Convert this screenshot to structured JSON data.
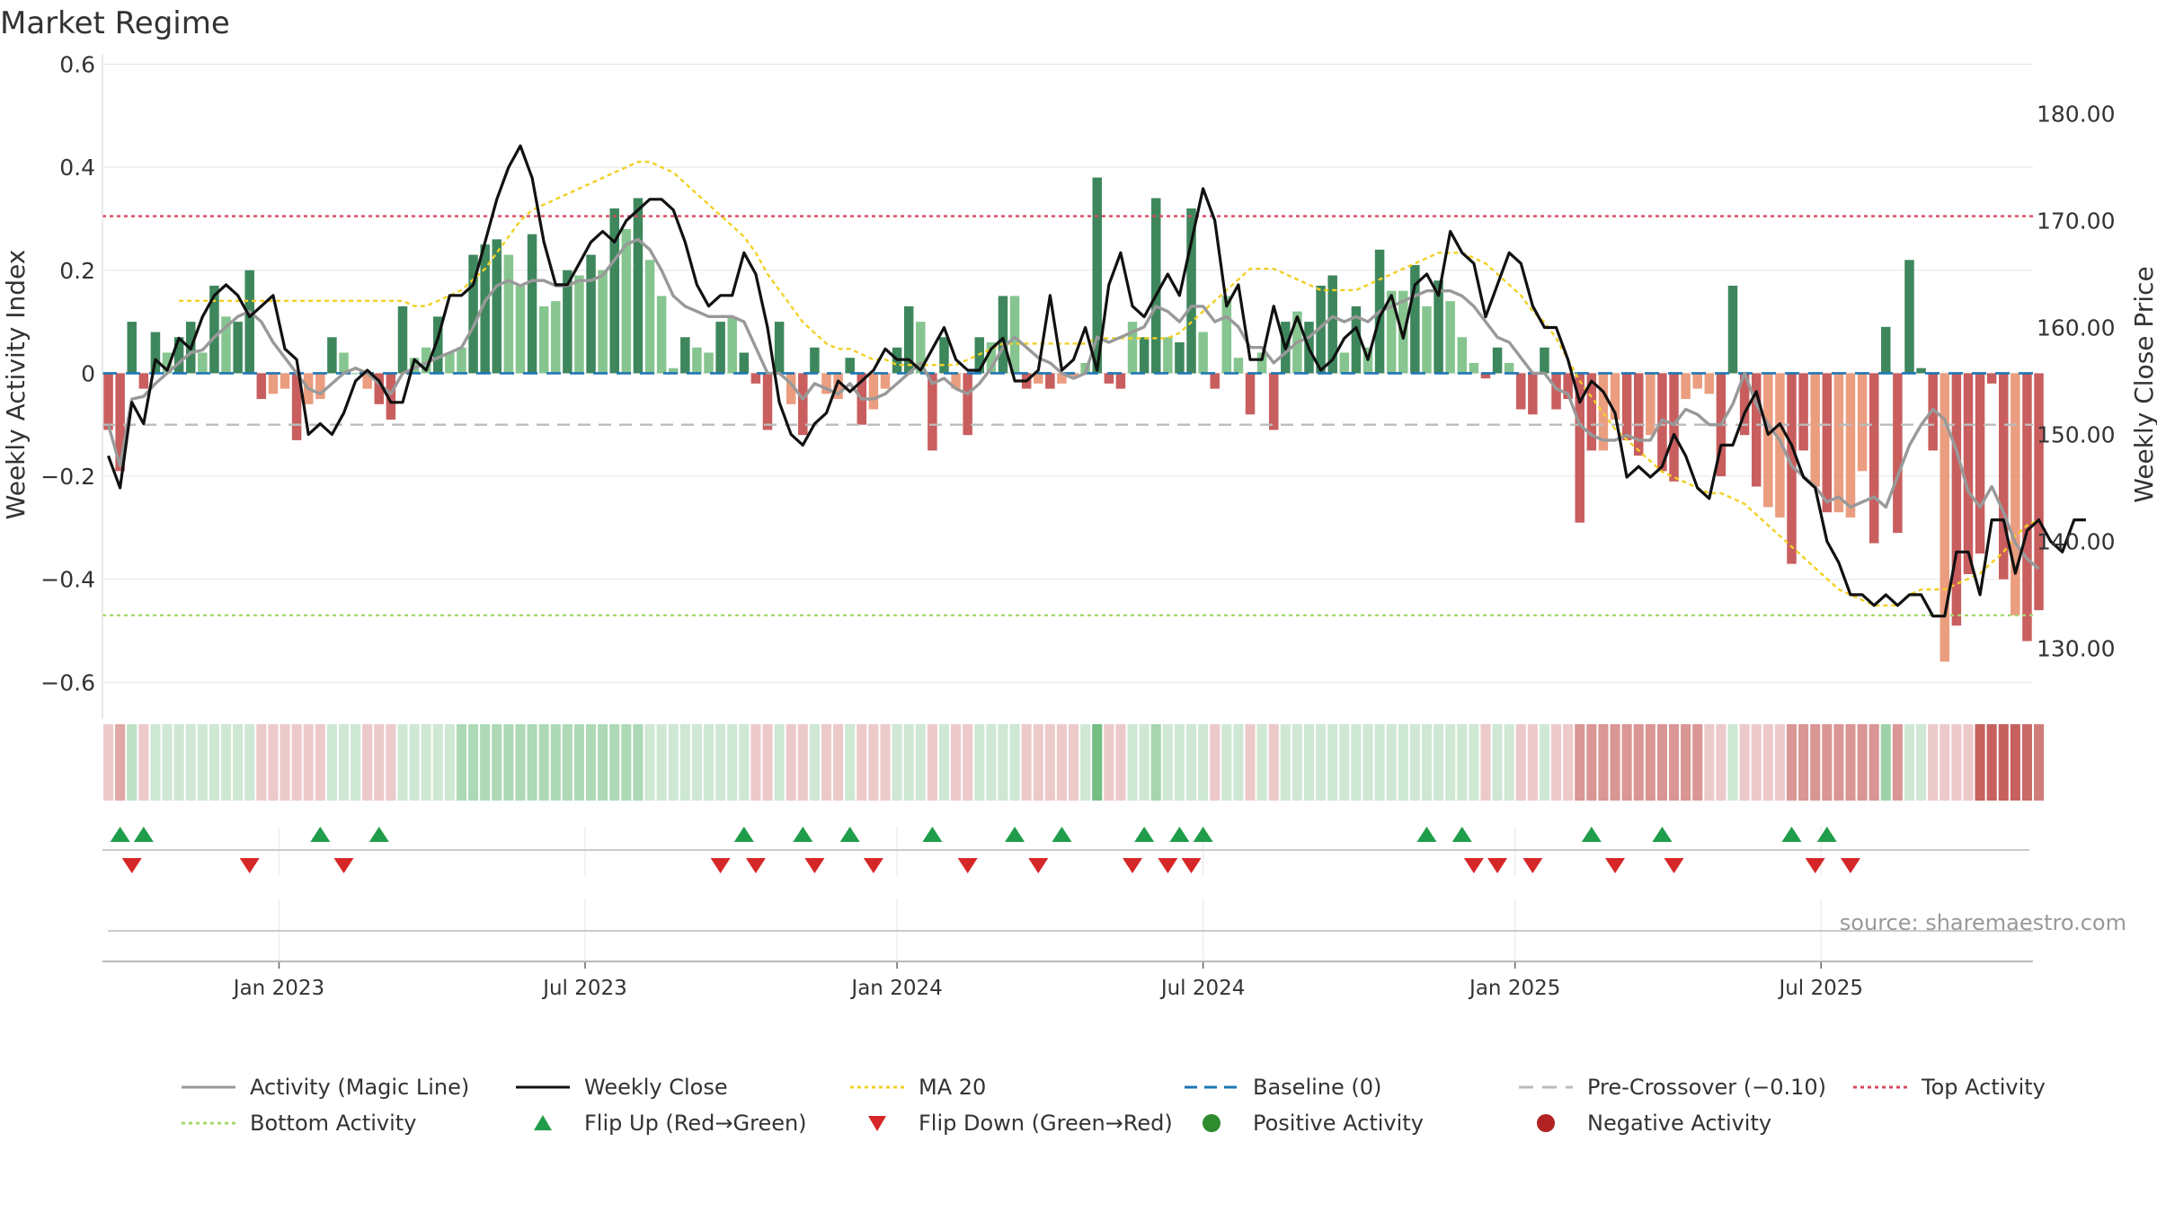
{
  "chart_data": {
    "type": "bar+line",
    "title": "Market Regime",
    "ylabel_left": "Weekly Activity Index",
    "ylabel_right": "Weekly Close Price",
    "source": "source: sharemaestro.com",
    "left_axis": {
      "ylim": [
        -0.65,
        0.62
      ],
      "ticks": [
        0.6,
        0.4,
        0.2,
        0,
        -0.2,
        -0.4,
        -0.6
      ],
      "tick_labels": [
        "0.6",
        "0.4",
        "0.2",
        "0",
        "−0.2",
        "−0.4",
        "−0.6"
      ]
    },
    "right_axis": {
      "ylim": [
        124.4,
        185.6
      ],
      "ticks": [
        180,
        170,
        160,
        150,
        140,
        130
      ],
      "tick_labels": [
        "180.00",
        "170.00",
        "160.00",
        "150.00",
        "140.00",
        "130.00"
      ]
    },
    "x_axis": {
      "n_weeks": 164,
      "tick_labels": [
        "Jan 2023",
        "Jul 2023",
        "Jan 2024",
        "Jul 2024",
        "Jan 2025",
        "Jul 2025"
      ],
      "tick_weeks": [
        15,
        41,
        67.5,
        93.5,
        120,
        146
      ]
    },
    "reference_lines": {
      "top_activity": 0.305,
      "bottom_activity": -0.47,
      "baseline": 0,
      "pre_crossover": -0.1
    },
    "activity_values": [
      -0.11,
      -0.19,
      0.1,
      -0.03,
      0.08,
      0.04,
      0.07,
      0.1,
      0.04,
      0.17,
      0.11,
      0.1,
      0.2,
      -0.05,
      -0.04,
      -0.03,
      -0.13,
      -0.06,
      -0.05,
      0.07,
      0.04,
      0,
      -0.03,
      -0.06,
      -0.09,
      0.13,
      0.03,
      0.05,
      0.11,
      0.04,
      0.05,
      0.23,
      0.25,
      0.26,
      0.23,
      0.17,
      0.27,
      0.13,
      0.14,
      0.2,
      0.19,
      0.23,
      0.2,
      0.32,
      0.28,
      0.34,
      0.22,
      0.15,
      0.01,
      0.07,
      0.05,
      0.04,
      0.1,
      0.11,
      0.04,
      -0.02,
      -0.11,
      0.1,
      -0.06,
      -0.12,
      0.05,
      -0.04,
      -0.05,
      0.03,
      -0.1,
      -0.07,
      -0.03,
      0.05,
      0.13,
      0.1,
      -0.15,
      0.07,
      -0.03,
      -0.12,
      0.07,
      0.06,
      0.15,
      0.15,
      -0.03,
      -0.02,
      -0.03,
      -0.02,
      -0.01,
      0.02,
      0.38,
      -0.02,
      -0.03,
      0.1,
      0.07,
      0.34,
      0.07,
      0.06,
      0.32,
      0.08,
      -0.03,
      0.15,
      0.03,
      -0.08,
      0.04,
      -0.11,
      0.1,
      0.12,
      0.1,
      0.17,
      0.19,
      0.04,
      0.13,
      0.05,
      0.24,
      0.16,
      0.16,
      0.21,
      0.13,
      0.18,
      0.14,
      0.07,
      0.02,
      -0.01,
      0.05,
      0.02,
      -0.07,
      -0.08,
      0.05,
      -0.07,
      -0.05,
      -0.29,
      -0.15,
      -0.15,
      -0.09,
      -0.13,
      -0.16,
      -0.12,
      -0.19,
      -0.21,
      -0.05,
      -0.03,
      -0.04,
      -0.2,
      0.17,
      -0.12,
      -0.22,
      -0.26,
      -0.28,
      -0.37,
      -0.15,
      -0.22,
      -0.27,
      -0.27,
      -0.28,
      -0.19,
      -0.33,
      0.09,
      -0.31,
      0.22,
      0.01,
      -0.15,
      -0.56,
      -0.49,
      -0.39,
      -0.35,
      -0.02,
      -0.4,
      -0.47,
      -0.52,
      -0.46
    ],
    "activity_opacity": [
      0.72,
      0.85,
      0.8,
      0.72,
      0.72,
      0.45,
      0.72,
      0.72,
      0.45,
      0.72,
      0.45,
      0.72,
      0.85,
      0.72,
      0.45,
      0.45,
      0.72,
      0.45,
      0.45,
      0.72,
      0.45,
      0.45,
      0.45,
      0.72,
      0.72,
      0.72,
      0.45,
      0.45,
      0.72,
      0.45,
      0.45,
      0.72,
      0.72,
      0.72,
      0.45,
      0.45,
      0.72,
      0.45,
      0.45,
      0.72,
      0.45,
      0.72,
      0.45,
      0.72,
      0.45,
      0.72,
      0.45,
      0.45,
      0.45,
      0.72,
      0.45,
      0.45,
      0.72,
      0.45,
      0.72,
      0.72,
      0.72,
      0.72,
      0.45,
      0.72,
      0.72,
      0.45,
      0.45,
      0.72,
      0.72,
      0.45,
      0.45,
      0.72,
      0.72,
      0.45,
      0.72,
      0.72,
      0.45,
      0.72,
      0.72,
      0.45,
      0.72,
      0.45,
      0.72,
      0.45,
      0.72,
      0.45,
      0.45,
      0.45,
      0.85,
      0.72,
      0.72,
      0.45,
      0.72,
      0.85,
      0.45,
      0.72,
      0.72,
      0.45,
      0.72,
      0.45,
      0.45,
      0.72,
      0.45,
      0.72,
      0.72,
      0.45,
      0.72,
      0.72,
      0.72,
      0.45,
      0.72,
      0.45,
      0.72,
      0.45,
      0.45,
      0.72,
      0.45,
      0.72,
      0.45,
      0.45,
      0.45,
      0.72,
      0.72,
      0.45,
      0.72,
      0.72,
      0.72,
      0.72,
      0.72,
      0.72,
      0.72,
      0.45,
      0.45,
      0.72,
      0.72,
      0.45,
      0.72,
      0.72,
      0.45,
      0.45,
      0.45,
      0.72,
      0.72,
      0.72,
      0.72,
      0.45,
      0.45,
      0.72,
      0.72,
      0.45,
      0.72,
      0.45,
      0.45,
      0.45,
      0.72,
      0.72,
      0.72,
      0.72,
      0.72,
      0.72,
      0.45,
      0.72,
      0.85,
      0.72,
      0.72,
      0.85,
      0.45,
      0.72,
      0.72,
      0.45
    ],
    "magic_line": [
      -0.1,
      -0.18,
      -0.05,
      -0.045,
      -0.02,
      0.0,
      0.02,
      0.04,
      0.045,
      0.07,
      0.09,
      0.11,
      0.12,
      0.1,
      0.06,
      0.03,
      0.0,
      -0.03,
      -0.04,
      -0.02,
      0.0,
      0.01,
      0.0,
      -0.02,
      -0.04,
      0.0,
      0.01,
      0.02,
      0.03,
      0.04,
      0.05,
      0.09,
      0.14,
      0.17,
      0.18,
      0.17,
      0.18,
      0.18,
      0.17,
      0.17,
      0.18,
      0.18,
      0.19,
      0.22,
      0.25,
      0.26,
      0.24,
      0.2,
      0.15,
      0.13,
      0.12,
      0.11,
      0.11,
      0.11,
      0.1,
      0.05,
      0.0,
      0.0,
      -0.02,
      -0.05,
      -0.02,
      -0.03,
      -0.04,
      -0.02,
      -0.05,
      -0.05,
      -0.04,
      -0.02,
      0.0,
      0.02,
      -0.02,
      -0.01,
      -0.03,
      -0.04,
      -0.02,
      0.01,
      0.05,
      0.07,
      0.05,
      0.03,
      0.02,
      0.0,
      -0.01,
      0.0,
      0.07,
      0.06,
      0.07,
      0.08,
      0.09,
      0.13,
      0.12,
      0.1,
      0.13,
      0.13,
      0.1,
      0.11,
      0.09,
      0.05,
      0.05,
      0.02,
      0.04,
      0.06,
      0.07,
      0.09,
      0.11,
      0.1,
      0.11,
      0.1,
      0.12,
      0.13,
      0.14,
      0.15,
      0.16,
      0.16,
      0.16,
      0.15,
      0.13,
      0.1,
      0.07,
      0.06,
      0.03,
      0.0,
      0.0,
      -0.03,
      -0.04,
      -0.1,
      -0.12,
      -0.13,
      -0.13,
      -0.12,
      -0.13,
      -0.13,
      -0.09,
      -0.1,
      -0.07,
      -0.08,
      -0.1,
      -0.1,
      -0.06,
      0.0,
      -0.06,
      -0.1,
      -0.13,
      -0.18,
      -0.2,
      -0.22,
      -0.25,
      -0.24,
      -0.26,
      -0.25,
      -0.24,
      -0.26,
      -0.2,
      -0.14,
      -0.1,
      -0.07,
      -0.09,
      -0.15,
      -0.23,
      -0.26,
      -0.22,
      -0.27,
      -0.33,
      -0.36,
      -0.38
    ],
    "weekly_close": [
      148,
      145,
      153,
      151,
      157,
      156,
      159,
      158,
      161,
      163,
      164,
      163,
      161,
      162,
      163,
      158,
      157,
      150,
      151,
      150,
      152,
      155,
      156,
      155,
      153,
      153,
      157,
      156,
      159,
      163,
      163,
      164,
      168,
      172,
      175,
      177,
      174,
      168,
      164,
      164,
      166,
      168,
      169,
      168,
      170,
      171,
      172,
      172,
      171,
      168,
      164,
      162,
      163,
      163,
      167,
      165,
      160,
      153,
      150,
      149,
      151,
      152,
      155,
      154,
      155,
      156,
      158,
      157,
      157,
      156,
      158,
      160,
      157,
      156,
      156,
      158,
      159,
      155,
      155,
      156,
      163,
      156,
      157,
      160,
      156,
      164,
      167,
      162,
      161,
      163,
      165,
      163,
      168,
      173,
      170,
      162,
      164,
      157,
      157,
      162,
      158,
      161,
      158,
      156,
      157,
      159,
      160,
      157,
      161,
      163,
      159,
      164,
      165,
      163,
      169,
      167,
      166,
      161,
      164,
      167,
      166,
      162,
      160,
      160,
      157,
      153,
      155,
      154,
      152,
      146,
      147,
      146,
      147,
      150,
      148,
      145,
      144,
      149,
      149,
      152,
      154,
      150,
      151,
      149,
      146,
      145,
      140,
      138,
      135,
      135,
      134,
      135,
      134,
      135,
      135,
      133,
      133,
      139,
      139,
      135,
      142,
      142,
      137,
      141,
      142,
      140,
      139,
      142,
      142
    ],
    "ma20": [
      null,
      null,
      null,
      null,
      null,
      null,
      162.5,
      162.5,
      162.5,
      162.5,
      162.5,
      162.5,
      162.5,
      162.5,
      162.5,
      162.5,
      162.5,
      162.5,
      162.5,
      162.5,
      162.5,
      162.5,
      162.5,
      162.5,
      162.5,
      162.5,
      162.0,
      162.0,
      162.5,
      163.0,
      163.5,
      164.5,
      165.5,
      167.0,
      168.5,
      170.0,
      171.0,
      171.5,
      172.0,
      172.5,
      173.0,
      173.5,
      174.0,
      174.5,
      175.0,
      175.5,
      175.5,
      175.0,
      174.5,
      173.5,
      172.5,
      171.5,
      170.5,
      169.5,
      168.5,
      167.0,
      165.0,
      163.5,
      162.0,
      160.5,
      159.5,
      158.5,
      158.0,
      158.0,
      157.5,
      157.0,
      157.0,
      156.5,
      156.5,
      156.5,
      156.5,
      156.5,
      156.5,
      157.0,
      157.5,
      158.0,
      158.5,
      158.5,
      158.5,
      158.5,
      158.5,
      158.5,
      158.5,
      158.5,
      159.0,
      159.0,
      159.0,
      159.0,
      159.0,
      159.0,
      159.0,
      159.5,
      160.5,
      161.5,
      162.5,
      163.5,
      164.5,
      165.5,
      165.5,
      165.5,
      165.0,
      164.5,
      164.0,
      163.5,
      163.5,
      163.5,
      163.5,
      164.0,
      164.5,
      165.0,
      165.5,
      166.0,
      166.5,
      167.0,
      167.0,
      167.0,
      166.5,
      166.0,
      165.0,
      164.0,
      163.0,
      161.5,
      160.5,
      159.0,
      157.0,
      155.0,
      153.5,
      152.0,
      150.5,
      149.5,
      148.5,
      147.5,
      146.5,
      146.0,
      145.5,
      145.0,
      144.5,
      144.5,
      144.0,
      143.5,
      142.5,
      141.5,
      140.5,
      139.5,
      138.5,
      137.5,
      136.5,
      135.5,
      135.0,
      134.5,
      134.0,
      134.0,
      134.0,
      135.0,
      135.5,
      135.5,
      135.5,
      136.0,
      136.5,
      137.0,
      138.0,
      139.0,
      140.5,
      141.5,
      142.0
    ],
    "flip_up_weeks": [
      1,
      3,
      18,
      23,
      54,
      59,
      63,
      70,
      77,
      81,
      88,
      91,
      93,
      112,
      115,
      126,
      132,
      143,
      146
    ],
    "flip_down_weeks": [
      2,
      12,
      20,
      52,
      55,
      60,
      65,
      73,
      79,
      87,
      90,
      92,
      116,
      118,
      121,
      128,
      133,
      145,
      148
    ],
    "regime_strip_opacity": [
      0.3,
      0.5,
      0.4,
      0.3,
      0.3,
      0.3,
      0.3,
      0.3,
      0.3,
      0.3,
      0.3,
      0.3,
      0.3,
      0.3,
      0.3,
      0.3,
      0.3,
      0.3,
      0.3,
      0.3,
      0.3,
      0.3,
      0.3,
      0.3,
      0.3,
      0.3,
      0.3,
      0.3,
      0.3,
      0.3,
      0.5,
      0.5,
      0.5,
      0.5,
      0.5,
      0.5,
      0.5,
      0.5,
      0.5,
      0.5,
      0.5,
      0.5,
      0.5,
      0.5,
      0.5,
      0.5,
      0.3,
      0.3,
      0.3,
      0.3,
      0.3,
      0.3,
      0.3,
      0.3,
      0.3,
      0.3,
      0.3,
      0.3,
      0.3,
      0.3,
      0.3,
      0.3,
      0.3,
      0.3,
      0.3,
      0.3,
      0.3,
      0.3,
      0.3,
      0.3,
      0.3,
      0.3,
      0.3,
      0.3,
      0.3,
      0.3,
      0.3,
      0.3,
      0.3,
      0.3,
      0.3,
      0.3,
      0.3,
      0.3,
      0.85,
      0.3,
      0.3,
      0.3,
      0.3,
      0.55,
      0.3,
      0.3,
      0.3,
      0.3,
      0.3,
      0.3,
      0.3,
      0.3,
      0.3,
      0.3,
      0.3,
      0.3,
      0.3,
      0.3,
      0.3,
      0.3,
      0.3,
      0.3,
      0.3,
      0.3,
      0.3,
      0.3,
      0.3,
      0.3,
      0.3,
      0.3,
      0.3,
      0.3,
      0.3,
      0.3,
      0.3,
      0.3,
      0.3,
      0.3,
      0.3,
      0.6,
      0.6,
      0.6,
      0.6,
      0.6,
      0.6,
      0.6,
      0.6,
      0.6,
      0.6,
      0.6,
      0.3,
      0.3,
      0.3,
      0.3,
      0.3,
      0.3,
      0.3,
      0.6,
      0.6,
      0.6,
      0.6,
      0.6,
      0.6,
      0.6,
      0.6,
      0.6,
      0.6,
      0.3,
      0.3,
      0.3,
      0.3,
      0.3,
      0.3,
      0.9,
      0.9,
      0.9,
      0.9,
      0.85,
      0.75,
      0.75,
      0.75,
      0.75
    ],
    "legend": [
      "Activity (Magic Line)",
      "Weekly Close",
      "MA 20",
      "Baseline (0)",
      "Pre-Crossover (−0.10)",
      "Top Activity",
      "Bottom Activity",
      "Flip Up (Red→Green)",
      "Flip Down (Green→Red)",
      "Positive Activity",
      "Negative Activity"
    ],
    "colors": {
      "positive": "#2e7d4f",
      "positive_light": "#7cc085",
      "negative": "#c24848",
      "negative_light": "#e8906e",
      "magic_line": "#999999",
      "close": "#111111",
      "ma20": "#f2d024",
      "baseline": "#1f77b4",
      "pre_crossover": "#bbbbbb",
      "top": "#d9485f",
      "bottom": "#a5d86e",
      "flip_up": "#1f9d4a",
      "flip_down": "#d62728",
      "pos_dot": "#2e8b2e",
      "neg_dot": "#b22222"
    }
  }
}
